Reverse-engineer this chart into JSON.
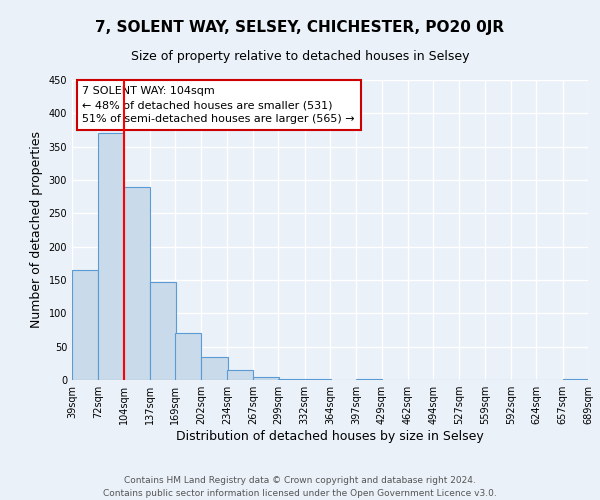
{
  "title": "7, SOLENT WAY, SELSEY, CHICHESTER, PO20 0JR",
  "subtitle": "Size of property relative to detached houses in Selsey",
  "xlabel": "Distribution of detached houses by size in Selsey",
  "ylabel": "Number of detached properties",
  "bin_edges": [
    39,
    72,
    104,
    137,
    169,
    202,
    234,
    267,
    299,
    332,
    364,
    397,
    429,
    462,
    494,
    527,
    559,
    592,
    624,
    657,
    689
  ],
  "bin_heights": [
    165,
    370,
    290,
    147,
    70,
    35,
    15,
    5,
    2,
    1,
    0,
    1,
    0,
    0,
    0,
    0,
    0,
    0,
    0,
    1
  ],
  "bin_labels": [
    "39sqm",
    "72sqm",
    "104sqm",
    "137sqm",
    "169sqm",
    "202sqm",
    "234sqm",
    "267sqm",
    "299sqm",
    "332sqm",
    "364sqm",
    "397sqm",
    "429sqm",
    "462sqm",
    "494sqm",
    "527sqm",
    "559sqm",
    "592sqm",
    "624sqm",
    "657sqm",
    "689sqm"
  ],
  "bar_color": "#c9daea",
  "bar_edge_color": "#5b9bd5",
  "red_line_x": 104,
  "ylim": [
    0,
    450
  ],
  "annotation_title": "7 SOLENT WAY: 104sqm",
  "annotation_line1": "← 48% of detached houses are smaller (531)",
  "annotation_line2": "51% of semi-detached houses are larger (565) →",
  "annotation_box_color": "#ffffff",
  "annotation_box_edge": "#cc0000",
  "footer_line1": "Contains HM Land Registry data © Crown copyright and database right 2024.",
  "footer_line2": "Contains public sector information licensed under the Open Government Licence v3.0.",
  "background_color": "#eaf1f8",
  "grid_color": "#ffffff",
  "title_fontsize": 11,
  "subtitle_fontsize": 9,
  "axis_label_fontsize": 9,
  "tick_fontsize": 7,
  "annotation_fontsize": 8,
  "footer_fontsize": 6.5
}
